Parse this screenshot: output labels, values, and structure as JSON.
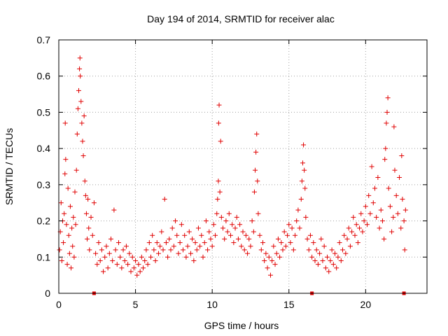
{
  "chart_data": {
    "type": "scatter",
    "title": "Day 194 of 2014, SRMTID for receiver alac",
    "xlabel": "GPS time / hours",
    "ylabel": "SRMTID / TECUs",
    "xlim": [
      0,
      24
    ],
    "ylim": [
      0,
      0.7
    ],
    "x_ticks": [
      0,
      5,
      10,
      15,
      20
    ],
    "y_ticks": [
      0,
      0.1,
      0.2,
      0.3,
      0.4,
      0.5,
      0.6,
      0.7
    ],
    "x_tick_labels": [
      "0",
      "5",
      "10",
      "15",
      "20"
    ],
    "y_tick_labels": [
      "0",
      "0.1",
      "0.2",
      "0.3",
      "0.4",
      "0.5",
      "0.6",
      "0.7"
    ],
    "grid": true,
    "marker": "+",
    "color": "#e00000",
    "series": [
      {
        "name": "alac",
        "points": [
          [
            0.05,
            0.12
          ],
          [
            0.1,
            0.17
          ],
          [
            0.15,
            0.25
          ],
          [
            0.2,
            0.09
          ],
          [
            0.25,
            0.2
          ],
          [
            0.3,
            0.14
          ],
          [
            0.35,
            0.22
          ],
          [
            0.4,
            0.33
          ],
          [
            0.42,
            0.47
          ],
          [
            0.45,
            0.37
          ],
          [
            0.5,
            0.19
          ],
          [
            0.55,
            0.08
          ],
          [
            0.6,
            0.29
          ],
          [
            0.65,
            0.16
          ],
          [
            0.7,
            0.11
          ],
          [
            0.75,
            0.24
          ],
          [
            0.8,
            0.07
          ],
          [
            0.85,
            0.18
          ],
          [
            0.9,
            0.13
          ],
          [
            0.95,
            0.21
          ],
          [
            1.0,
            0.1
          ],
          [
            1.05,
            0.28
          ],
          [
            1.1,
            0.19
          ],
          [
            1.15,
            0.34
          ],
          [
            1.2,
            0.44
          ],
          [
            1.25,
            0.51
          ],
          [
            1.3,
            0.56
          ],
          [
            1.35,
            0.62
          ],
          [
            1.38,
            0.65
          ],
          [
            1.4,
            0.6
          ],
          [
            1.45,
            0.53
          ],
          [
            1.5,
            0.47
          ],
          [
            1.55,
            0.42
          ],
          [
            1.6,
            0.38
          ],
          [
            1.65,
            0.49
          ],
          [
            1.7,
            0.31
          ],
          [
            1.75,
            0.27
          ],
          [
            1.8,
            0.22
          ],
          [
            1.85,
            0.15
          ],
          [
            1.9,
            0.26
          ],
          [
            1.95,
            0.18
          ],
          [
            2.0,
            0.12
          ],
          [
            2.1,
            0.21
          ],
          [
            2.2,
            0.16
          ],
          [
            2.3,
            0.25
          ],
          [
            2.4,
            0.11
          ],
          [
            2.5,
            0.08
          ],
          [
            2.6,
            0.14
          ],
          [
            2.7,
            0.09
          ],
          [
            2.8,
            0.12
          ],
          [
            2.9,
            0.06
          ],
          [
            3.0,
            0.1
          ],
          [
            3.1,
            0.13
          ],
          [
            3.2,
            0.07
          ],
          [
            3.3,
            0.11
          ],
          [
            3.4,
            0.15
          ],
          [
            3.5,
            0.09
          ],
          [
            3.6,
            0.23
          ],
          [
            3.7,
            0.12
          ],
          [
            3.8,
            0.08
          ],
          [
            3.9,
            0.14
          ],
          [
            4.0,
            0.1
          ],
          [
            4.1,
            0.07
          ],
          [
            4.2,
            0.12
          ],
          [
            4.3,
            0.09
          ],
          [
            4.4,
            0.13
          ],
          [
            4.5,
            0.08
          ],
          [
            4.6,
            0.11
          ],
          [
            4.7,
            0.06
          ],
          [
            4.8,
            0.1
          ],
          [
            4.9,
            0.07
          ],
          [
            5.0,
            0.09
          ],
          [
            5.1,
            0.05
          ],
          [
            5.2,
            0.08
          ],
          [
            5.3,
            0.06
          ],
          [
            5.4,
            0.1
          ],
          [
            5.5,
            0.07
          ],
          [
            5.6,
            0.09
          ],
          [
            5.7,
            0.12
          ],
          [
            5.8,
            0.08
          ],
          [
            5.9,
            0.14
          ],
          [
            6.0,
            0.1
          ],
          [
            6.1,
            0.16
          ],
          [
            6.2,
            0.12
          ],
          [
            6.3,
            0.09
          ],
          [
            6.4,
            0.14
          ],
          [
            6.5,
            0.11
          ],
          [
            6.6,
            0.13
          ],
          [
            6.7,
            0.17
          ],
          [
            6.8,
            0.12
          ],
          [
            6.9,
            0.26
          ],
          [
            7.0,
            0.14
          ],
          [
            7.1,
            0.1
          ],
          [
            7.2,
            0.15
          ],
          [
            7.3,
            0.12
          ],
          [
            7.4,
            0.18
          ],
          [
            7.5,
            0.13
          ],
          [
            7.6,
            0.2
          ],
          [
            7.7,
            0.16
          ],
          [
            7.8,
            0.11
          ],
          [
            7.9,
            0.14
          ],
          [
            8.0,
            0.19
          ],
          [
            8.1,
            0.12
          ],
          [
            8.2,
            0.16
          ],
          [
            8.3,
            0.1
          ],
          [
            8.4,
            0.13
          ],
          [
            8.5,
            0.17
          ],
          [
            8.6,
            0.11
          ],
          [
            8.7,
            0.15
          ],
          [
            8.8,
            0.09
          ],
          [
            8.9,
            0.14
          ],
          [
            9.0,
            0.12
          ],
          [
            9.1,
            0.18
          ],
          [
            9.2,
            0.13
          ],
          [
            9.3,
            0.16
          ],
          [
            9.4,
            0.1
          ],
          [
            9.5,
            0.14
          ],
          [
            9.6,
            0.2
          ],
          [
            9.7,
            0.12
          ],
          [
            9.8,
            0.17
          ],
          [
            9.9,
            0.15
          ],
          [
            10.0,
            0.13
          ],
          [
            10.1,
            0.19
          ],
          [
            10.2,
            0.16
          ],
          [
            10.3,
            0.22
          ],
          [
            10.35,
            0.26
          ],
          [
            10.4,
            0.31
          ],
          [
            10.42,
            0.47
          ],
          [
            10.45,
            0.52
          ],
          [
            10.5,
            0.28
          ],
          [
            10.55,
            0.42
          ],
          [
            10.6,
            0.21
          ],
          [
            10.7,
            0.18
          ],
          [
            10.8,
            0.15
          ],
          [
            10.9,
            0.2
          ],
          [
            11.0,
            0.17
          ],
          [
            11.1,
            0.22
          ],
          [
            11.2,
            0.16
          ],
          [
            11.3,
            0.19
          ],
          [
            11.4,
            0.14
          ],
          [
            11.5,
            0.18
          ],
          [
            11.6,
            0.21
          ],
          [
            11.7,
            0.15
          ],
          [
            11.8,
            0.19
          ],
          [
            11.9,
            0.13
          ],
          [
            12.0,
            0.17
          ],
          [
            12.1,
            0.12
          ],
          [
            12.2,
            0.16
          ],
          [
            12.3,
            0.11
          ],
          [
            12.4,
            0.15
          ],
          [
            12.5,
            0.13
          ],
          [
            12.6,
            0.2
          ],
          [
            12.7,
            0.17
          ],
          [
            12.75,
            0.28
          ],
          [
            12.8,
            0.34
          ],
          [
            12.85,
            0.39
          ],
          [
            12.9,
            0.44
          ],
          [
            12.95,
            0.31
          ],
          [
            13.0,
            0.22
          ],
          [
            13.1,
            0.16
          ],
          [
            13.2,
            0.12
          ],
          [
            13.3,
            0.14
          ],
          [
            13.4,
            0.09
          ],
          [
            13.5,
            0.11
          ],
          [
            13.6,
            0.07
          ],
          [
            13.7,
            0.1
          ],
          [
            13.8,
            0.05
          ],
          [
            13.9,
            0.09
          ],
          [
            14.0,
            0.13
          ],
          [
            14.1,
            0.08
          ],
          [
            14.2,
            0.11
          ],
          [
            14.3,
            0.15
          ],
          [
            14.4,
            0.1
          ],
          [
            14.5,
            0.14
          ],
          [
            14.6,
            0.12
          ],
          [
            14.7,
            0.17
          ],
          [
            14.8,
            0.13
          ],
          [
            14.9,
            0.16
          ],
          [
            15.0,
            0.19
          ],
          [
            15.1,
            0.14
          ],
          [
            15.2,
            0.18
          ],
          [
            15.3,
            0.12
          ],
          [
            15.4,
            0.16
          ],
          [
            15.5,
            0.2
          ],
          [
            15.6,
            0.23
          ],
          [
            15.7,
            0.18
          ],
          [
            15.8,
            0.26
          ],
          [
            15.85,
            0.31
          ],
          [
            15.9,
            0.36
          ],
          [
            15.95,
            0.41
          ],
          [
            16.0,
            0.34
          ],
          [
            16.05,
            0.29
          ],
          [
            16.1,
            0.21
          ],
          [
            16.2,
            0.15
          ],
          [
            16.3,
            0.12
          ],
          [
            16.4,
            0.16
          ],
          [
            16.5,
            0.1
          ],
          [
            16.6,
            0.14
          ],
          [
            16.7,
            0.09
          ],
          [
            16.8,
            0.12
          ],
          [
            16.9,
            0.08
          ],
          [
            17.0,
            0.11
          ],
          [
            17.1,
            0.15
          ],
          [
            17.2,
            0.09
          ],
          [
            17.3,
            0.13
          ],
          [
            17.4,
            0.07
          ],
          [
            17.5,
            0.1
          ],
          [
            17.6,
            0.06
          ],
          [
            17.7,
            0.09
          ],
          [
            17.8,
            0.12
          ],
          [
            17.9,
            0.08
          ],
          [
            18.0,
            0.11
          ],
          [
            18.1,
            0.07
          ],
          [
            18.2,
            0.1
          ],
          [
            18.3,
            0.14
          ],
          [
            18.4,
            0.09
          ],
          [
            18.5,
            0.12
          ],
          [
            18.6,
            0.16
          ],
          [
            18.7,
            0.11
          ],
          [
            18.8,
            0.15
          ],
          [
            18.9,
            0.18
          ],
          [
            19.0,
            0.13
          ],
          [
            19.1,
            0.17
          ],
          [
            19.2,
            0.21
          ],
          [
            19.3,
            0.16
          ],
          [
            19.4,
            0.19
          ],
          [
            19.5,
            0.14
          ],
          [
            19.6,
            0.18
          ],
          [
            19.7,
            0.22
          ],
          [
            19.8,
            0.17
          ],
          [
            19.9,
            0.2
          ],
          [
            20.0,
            0.24
          ],
          [
            20.1,
            0.19
          ],
          [
            20.2,
            0.27
          ],
          [
            20.3,
            0.22
          ],
          [
            20.4,
            0.35
          ],
          [
            20.5,
            0.25
          ],
          [
            20.6,
            0.29
          ],
          [
            20.7,
            0.21
          ],
          [
            20.8,
            0.32
          ],
          [
            20.9,
            0.18
          ],
          [
            21.0,
            0.23
          ],
          [
            21.1,
            0.2
          ],
          [
            21.2,
            0.15
          ],
          [
            21.25,
            0.37
          ],
          [
            21.3,
            0.4
          ],
          [
            21.35,
            0.47
          ],
          [
            21.4,
            0.5
          ],
          [
            21.45,
            0.54
          ],
          [
            21.5,
            0.29
          ],
          [
            21.6,
            0.24
          ],
          [
            21.7,
            0.17
          ],
          [
            21.8,
            0.21
          ],
          [
            21.85,
            0.46
          ],
          [
            21.9,
            0.34
          ],
          [
            22.0,
            0.27
          ],
          [
            22.1,
            0.22
          ],
          [
            22.2,
            0.32
          ],
          [
            22.3,
            0.18
          ],
          [
            22.35,
            0.38
          ],
          [
            22.4,
            0.26
          ],
          [
            22.5,
            0.2
          ],
          [
            22.55,
            0.12
          ],
          [
            22.6,
            0.23
          ]
        ]
      }
    ],
    "gap_markers": [
      2.3,
      16.5,
      22.5
    ]
  }
}
